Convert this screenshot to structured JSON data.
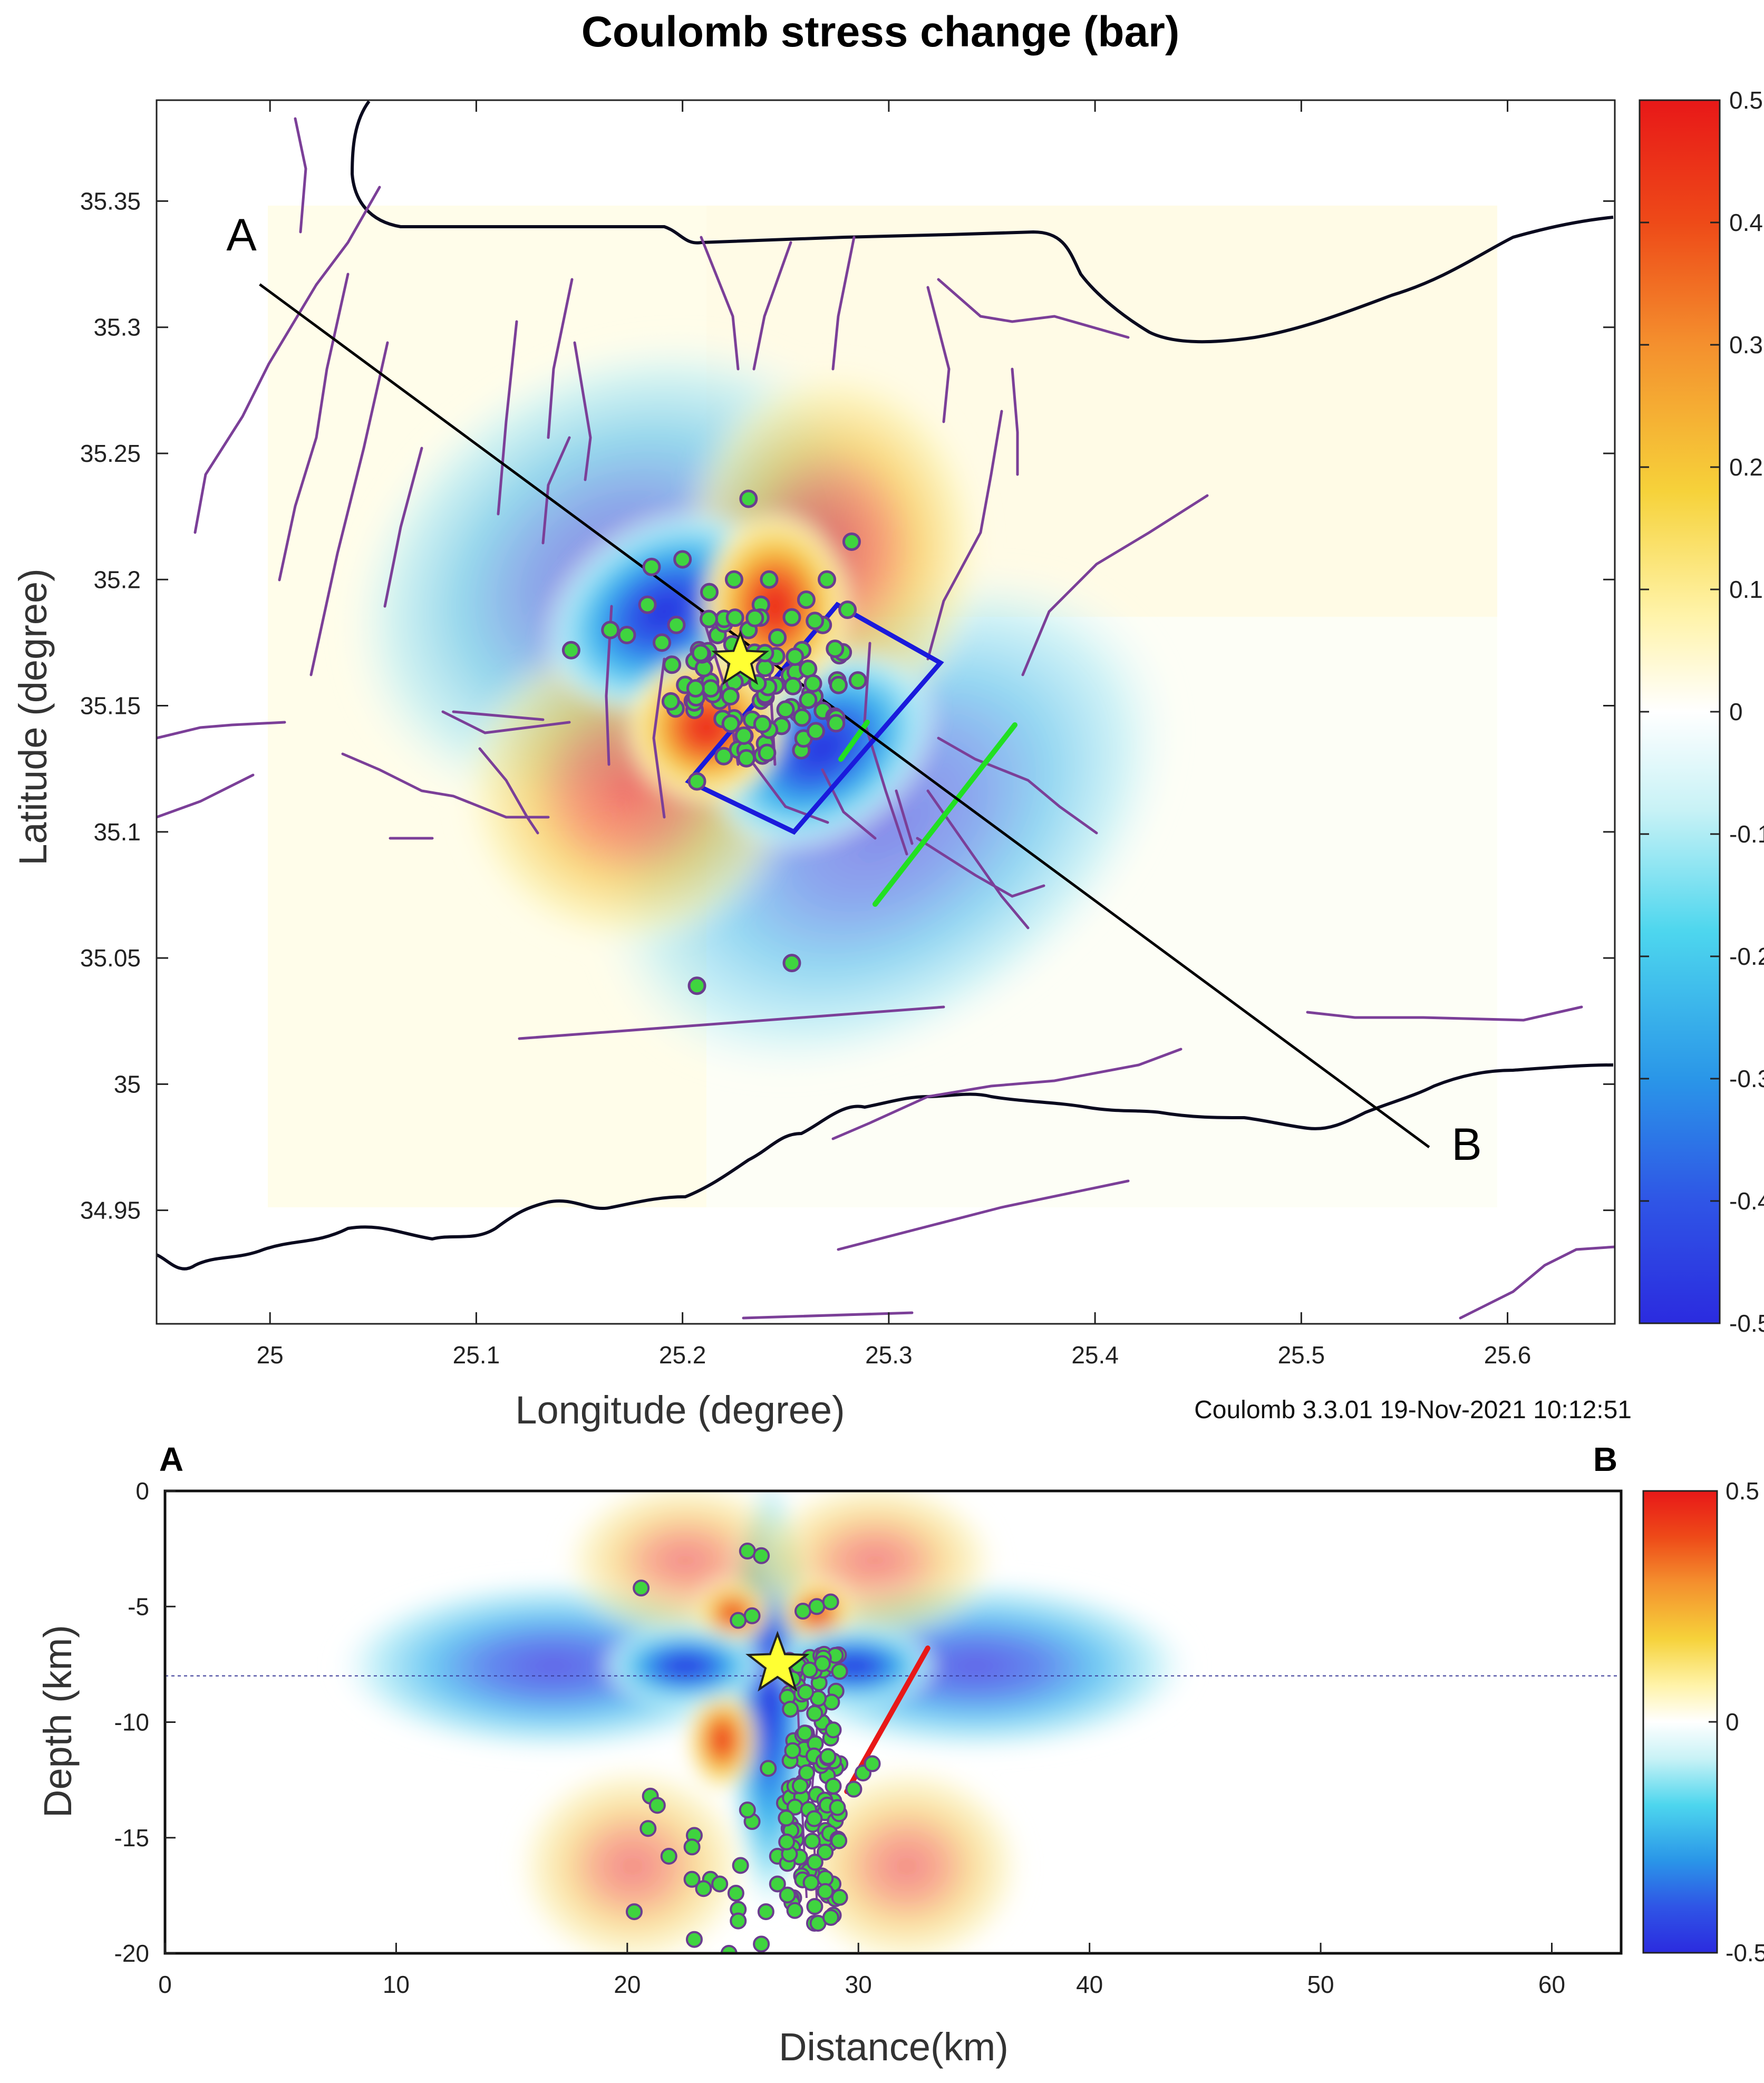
{
  "chart_data": [
    {
      "type": "heatmap",
      "title": "Coulomb stress change (bar)",
      "xlabel": "Longitude (degree)",
      "ylabel": "Latitude  (degree)",
      "xlim": [
        24.945,
        25.652
      ],
      "ylim": [
        34.905,
        35.39
      ],
      "xticks": [
        25,
        25.1,
        25.2,
        25.3,
        25.4,
        25.5,
        25.6
      ],
      "yticks": [
        34.95,
        35,
        35.05,
        35.1,
        35.15,
        35.2,
        35.25,
        35.3,
        35.35
      ],
      "colorbar": {
        "min": -0.5,
        "max": 0.5,
        "ticks": [
          0.5,
          0.4,
          0.3,
          0.2,
          0.1,
          0,
          -0.1,
          -0.2,
          -0.3,
          -0.4,
          -0.5
        ]
      },
      "epicenter": {
        "lon": 25.228,
        "lat": 35.168
      },
      "profile": {
        "start_label": "A",
        "end_label": "B",
        "start": [
          24.995,
          35.317
        ],
        "end": [
          25.562,
          34.975
        ]
      },
      "source_fault_box": [
        [
          25.275,
          35.19
        ],
        [
          25.325,
          35.167
        ],
        [
          25.254,
          35.1
        ],
        [
          25.203,
          35.12
        ]
      ],
      "faults_green": [
        [
          [
            25.277,
            35.128
          ],
          [
            25.284,
            35.137
          ]
        ],
        [
          [
            25.295,
            35.072
          ],
          [
            25.365,
            35.142
          ]
        ]
      ],
      "aftershocks": [
        {
          "lon": 25.232,
          "lat": 35.232
        },
        {
          "lon": 25.282,
          "lat": 35.215
        },
        {
          "lon": 25.2,
          "lat": 35.208
        },
        {
          "lon": 25.185,
          "lat": 35.205
        },
        {
          "lon": 25.225,
          "lat": 35.2
        },
        {
          "lon": 25.213,
          "lat": 35.195
        },
        {
          "lon": 25.238,
          "lat": 35.19
        },
        {
          "lon": 25.26,
          "lat": 35.192
        },
        {
          "lon": 25.253,
          "lat": 35.185
        },
        {
          "lon": 25.27,
          "lat": 35.2
        },
        {
          "lon": 25.268,
          "lat": 35.182
        },
        {
          "lon": 25.246,
          "lat": 35.177
        },
        {
          "lon": 25.183,
          "lat": 35.19
        },
        {
          "lon": 25.165,
          "lat": 35.18
        },
        {
          "lon": 25.173,
          "lat": 35.178
        },
        {
          "lon": 25.19,
          "lat": 35.175
        },
        {
          "lon": 25.146,
          "lat": 35.172
        },
        {
          "lon": 25.208,
          "lat": 35.172
        },
        {
          "lon": 25.217,
          "lat": 35.178
        },
        {
          "lon": 25.24,
          "lat": 35.165
        },
        {
          "lon": 25.258,
          "lat": 35.172
        },
        {
          "lon": 25.276,
          "lat": 35.17
        },
        {
          "lon": 25.28,
          "lat": 35.188
        },
        {
          "lon": 25.21,
          "lat": 35.158
        },
        {
          "lon": 25.218,
          "lat": 35.152
        },
        {
          "lon": 25.225,
          "lat": 35.145
        },
        {
          "lon": 25.238,
          "lat": 35.152
        },
        {
          "lon": 25.245,
          "lat": 35.158
        },
        {
          "lon": 25.252,
          "lat": 35.162
        },
        {
          "lon": 25.262,
          "lat": 35.155
        },
        {
          "lon": 25.268,
          "lat": 35.148
        },
        {
          "lon": 25.23,
          "lat": 35.138
        },
        {
          "lon": 25.22,
          "lat": 35.13
        },
        {
          "lon": 25.24,
          "lat": 35.135
        },
        {
          "lon": 25.248,
          "lat": 35.142
        },
        {
          "lon": 25.256,
          "lat": 35.147
        },
        {
          "lon": 25.275,
          "lat": 35.16
        },
        {
          "lon": 25.285,
          "lat": 35.16
        },
        {
          "lon": 25.197,
          "lat": 35.182
        },
        {
          "lon": 25.232,
          "lat": 35.18
        },
        {
          "lon": 25.242,
          "lat": 35.2
        },
        {
          "lon": 25.207,
          "lat": 35.12
        },
        {
          "lon": 25.207,
          "lat": 35.039
        },
        {
          "lon": 25.253,
          "lat": 35.048
        }
      ]
    },
    {
      "type": "heatmap",
      "xlabel": "Distance(km)",
      "ylabel": "Depth (km)",
      "xlim": [
        0,
        63
      ],
      "ylim": [
        -20,
        0
      ],
      "xticks": [
        0,
        10,
        20,
        30,
        40,
        50,
        60
      ],
      "yticks": [
        0,
        -5,
        -10,
        -15,
        -20
      ],
      "colorbar": {
        "min": -0.5,
        "max": 0.5,
        "ticks": [
          0.5,
          0,
          -0.5
        ]
      },
      "corner_labels": {
        "left": "A",
        "right": "B"
      },
      "reference_depth": -8,
      "hypocenter": {
        "x": 26.5,
        "depth": -7.5
      },
      "fault_trace": [
        [
          29.5,
          -13
        ],
        [
          33,
          -6.8
        ]
      ],
      "aftershocks": [
        {
          "x": 25.2,
          "d": -2.6
        },
        {
          "x": 25.8,
          "d": -2.8
        },
        {
          "x": 20.6,
          "d": -4.2
        },
        {
          "x": 25.4,
          "d": -5.4
        },
        {
          "x": 24.8,
          "d": -5.6
        },
        {
          "x": 27.6,
          "d": -5.2
        },
        {
          "x": 28.2,
          "d": -5.0
        },
        {
          "x": 28.8,
          "d": -4.8
        },
        {
          "x": 27.9,
          "d": -7.2
        },
        {
          "x": 28.3,
          "d": -8.3
        },
        {
          "x": 27.5,
          "d": -9.2
        },
        {
          "x": 28.6,
          "d": -10.2
        },
        {
          "x": 27.2,
          "d": -10.8
        },
        {
          "x": 28.0,
          "d": -11.5
        },
        {
          "x": 29.2,
          "d": -11.8
        },
        {
          "x": 27.6,
          "d": -12.6
        },
        {
          "x": 30.2,
          "d": -12.2
        },
        {
          "x": 30.6,
          "d": -11.8
        },
        {
          "x": 29.8,
          "d": -12.9
        },
        {
          "x": 26.8,
          "d": -13.5
        },
        {
          "x": 28.4,
          "d": -13.9
        },
        {
          "x": 27.0,
          "d": -14.6
        },
        {
          "x": 28.8,
          "d": -15.2
        },
        {
          "x": 26.5,
          "d": -15.8
        },
        {
          "x": 27.8,
          "d": -16.6
        },
        {
          "x": 28.9,
          "d": -17.0
        },
        {
          "x": 27.2,
          "d": -17.6
        },
        {
          "x": 26.0,
          "d": -18.2
        },
        {
          "x": 28.1,
          "d": -18.7
        },
        {
          "x": 25.8,
          "d": -19.6
        },
        {
          "x": 21.0,
          "d": -13.2
        },
        {
          "x": 21.3,
          "d": -13.6
        },
        {
          "x": 20.9,
          "d": -14.6
        },
        {
          "x": 22.9,
          "d": -14.9
        },
        {
          "x": 22.8,
          "d": -15.4
        },
        {
          "x": 21.8,
          "d": -15.8
        },
        {
          "x": 23.6,
          "d": -16.8
        },
        {
          "x": 22.8,
          "d": -16.8
        },
        {
          "x": 23.3,
          "d": -17.2
        },
        {
          "x": 24.0,
          "d": -17.0
        },
        {
          "x": 20.3,
          "d": -18.2
        },
        {
          "x": 22.9,
          "d": -19.4
        },
        {
          "x": 24.4,
          "d": -20.0
        },
        {
          "x": 24.7,
          "d": -17.4
        },
        {
          "x": 24.8,
          "d": -18.1
        },
        {
          "x": 24.8,
          "d": -18.6
        },
        {
          "x": 24.9,
          "d": -16.2
        },
        {
          "x": 25.4,
          "d": -14.3
        },
        {
          "x": 25.2,
          "d": -13.8
        },
        {
          "x": 26.1,
          "d": -12.0
        },
        {
          "x": 26.5,
          "d": -17.0
        }
      ]
    }
  ],
  "version_label": "Coulomb 3.3.01 19-Nov-2021 10:12:51"
}
